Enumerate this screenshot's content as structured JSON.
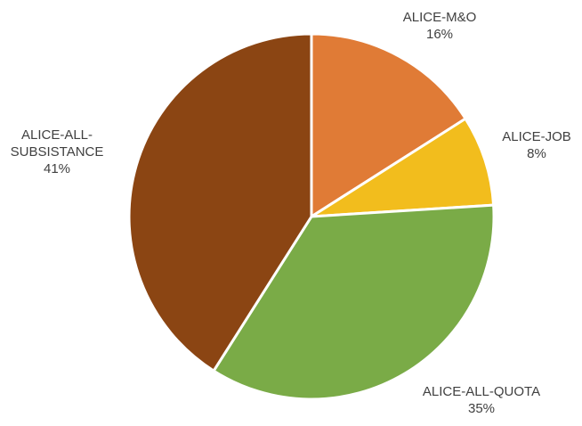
{
  "chart_data": {
    "type": "pie",
    "title": "",
    "start_angle_deg": 90,
    "direction": "clockwise",
    "slices": [
      {
        "label": [
          "ALICE-M&O"
        ],
        "value_label": "16%",
        "value": 16,
        "color": "#E07B36"
      },
      {
        "label": [
          "ALICE-JOB"
        ],
        "value_label": "8%",
        "value": 8,
        "color": "#F2BD1D"
      },
      {
        "label": [
          "ALICE-ALL-QUOTA"
        ],
        "value_label": "35%",
        "value": 35,
        "color": "#7AAB47"
      },
      {
        "label": [
          "ALICE-ALL-",
          "SUBSISTANCE"
        ],
        "value_label": "41%",
        "value": 41,
        "color": "#8B4513"
      }
    ]
  }
}
